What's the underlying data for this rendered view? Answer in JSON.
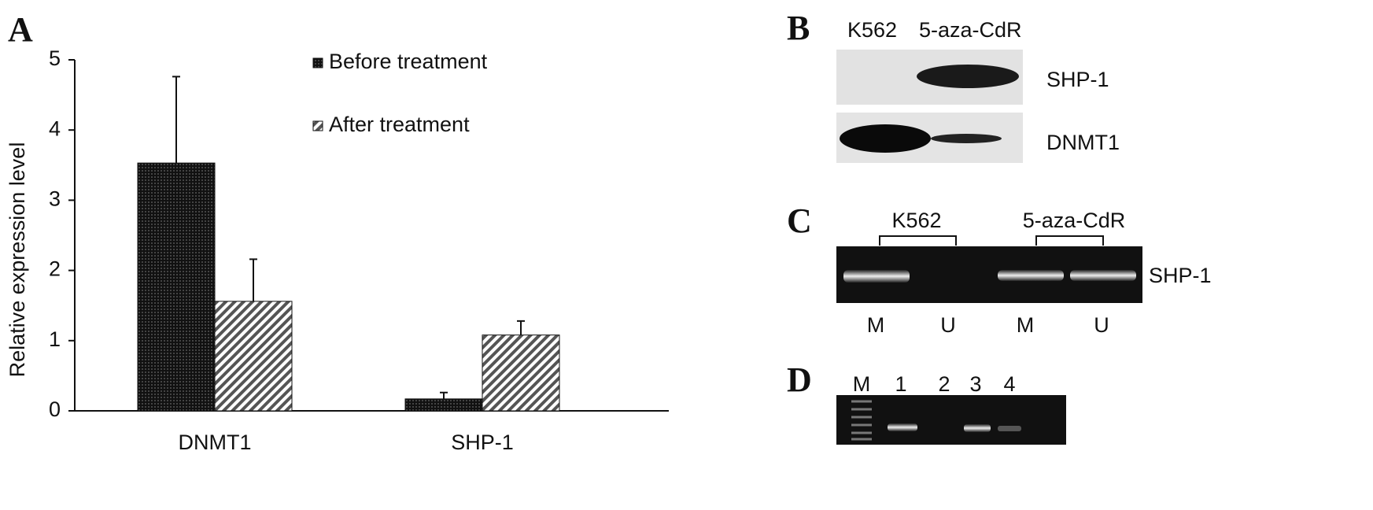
{
  "chart_data": {
    "type": "bar",
    "label": "A",
    "y_label": "Relative expression level",
    "categories": [
      "DNMT1",
      "SHP-1"
    ],
    "series": [
      {
        "name": "Before treatment",
        "color": "#222222",
        "values": [
          3.53,
          0.17
        ],
        "errors": [
          1.23,
          0.09
        ]
      },
      {
        "name": "After treatment",
        "color": "#888888",
        "values": [
          1.56,
          1.08
        ],
        "errors": [
          0.6,
          0.2
        ]
      }
    ],
    "ylim": [
      0,
      5
    ],
    "yticks": [
      0,
      1,
      2,
      3,
      4,
      5
    ],
    "grid": false
  },
  "panel_b": {
    "label": "B",
    "lanes": [
      "K562",
      "5-aza-CdR"
    ],
    "rows": [
      "SHP-1",
      "DNMT1"
    ]
  },
  "panel_c": {
    "label": "C",
    "groups": [
      "K562",
      "5-aza-CdR"
    ],
    "lanes": [
      "M",
      "U",
      "M",
      "U"
    ],
    "row": "SHP-1"
  },
  "panel_d": {
    "label": "D",
    "lanes": [
      "M",
      "1",
      "2",
      "3",
      "4"
    ]
  }
}
